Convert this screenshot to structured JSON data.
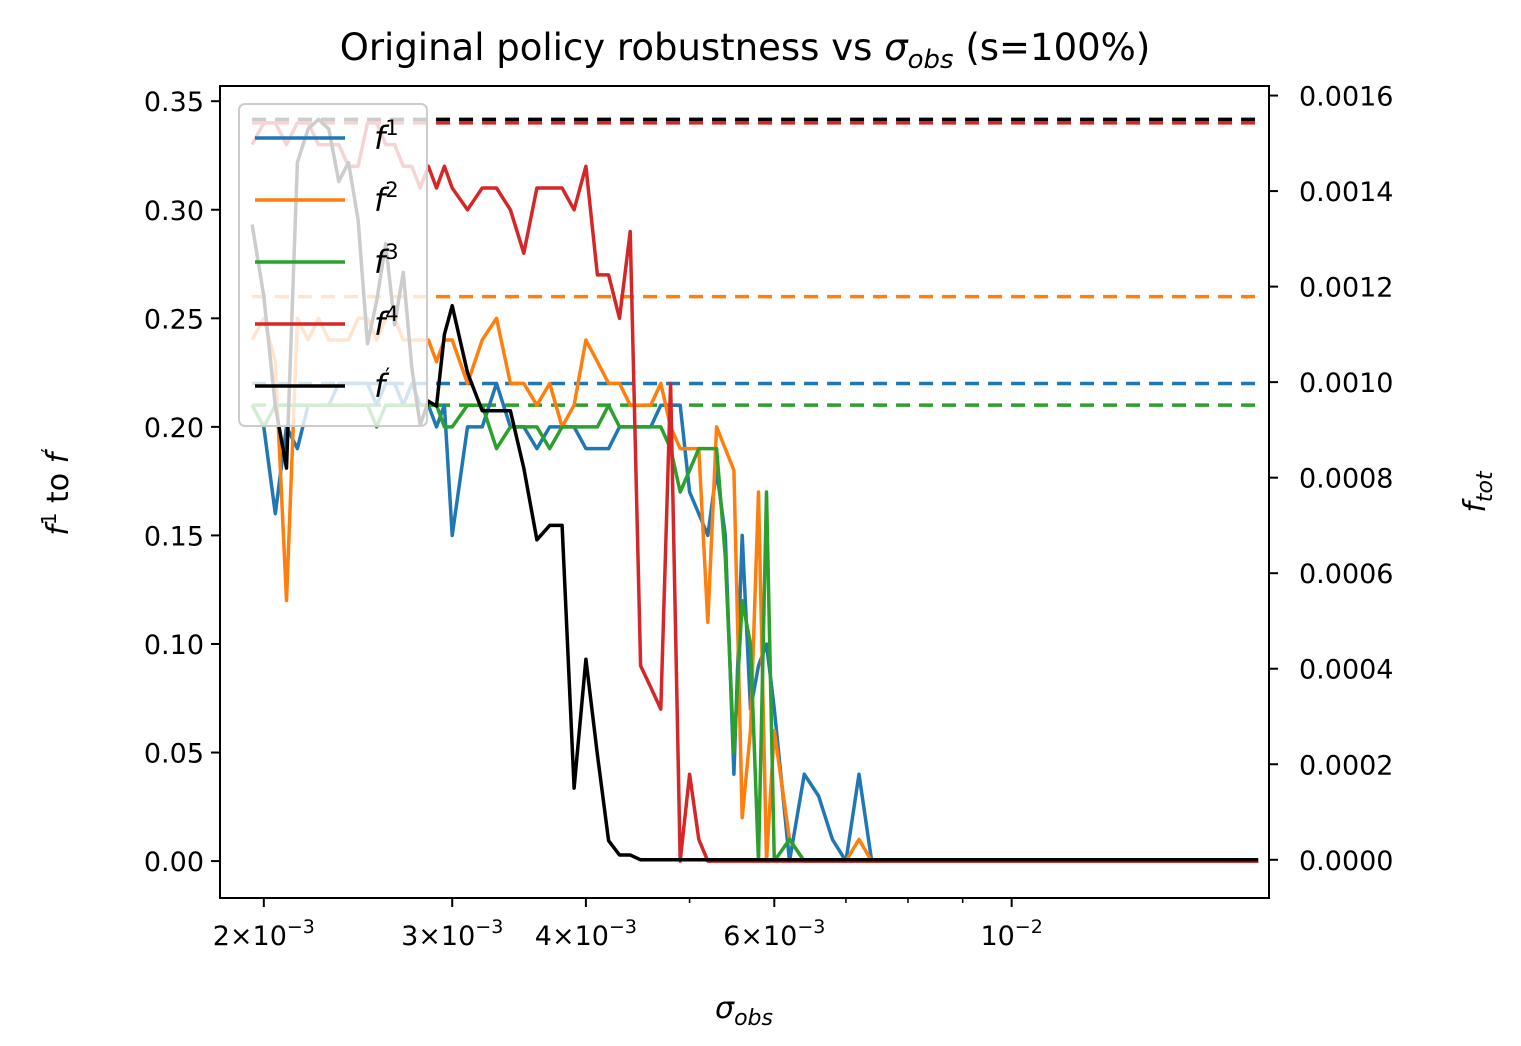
{
  "chart_data": {
    "type": "line",
    "title": "Original policy robustness vs σ_obs (s=100%)",
    "title_parts": {
      "pre": "Original policy robustness vs ",
      "sym": "σ",
      "sub": "obs",
      "post": " (s=100%)"
    },
    "xlabel": {
      "sym": "σ",
      "sub": "obs"
    },
    "ylabel": {
      "a": "f",
      "a_sup": "1",
      "mid": " to ",
      "b": "f",
      "b_sup": "′"
    },
    "y2label": {
      "sym": "f",
      "sub": "tot"
    },
    "x_scale": "log",
    "xlim": [
      0.00182,
      0.0174
    ],
    "ylim": [
      -0.017,
      0.357
    ],
    "y2lim": [
      -8e-05,
      0.00162
    ],
    "x_ticks": [
      {
        "value": 0.002,
        "mant": "2",
        "exp": "−3"
      },
      {
        "value": 0.003,
        "mant": "3",
        "exp": "−3"
      },
      {
        "value": 0.004,
        "mant": "4",
        "exp": "−3"
      },
      {
        "value": 0.006,
        "mant": "6",
        "exp": "−3"
      },
      {
        "value": 0.01,
        "mant": "",
        "exp": "−2"
      }
    ],
    "x_minor_ticks": [
      0.005,
      0.007,
      0.008,
      0.009
    ],
    "y_ticks": [
      "0.00",
      "0.05",
      "0.10",
      "0.15",
      "0.20",
      "0.25",
      "0.30",
      "0.35"
    ],
    "y2_ticks": [
      "0.0000",
      "0.0002",
      "0.0004",
      "0.0006",
      "0.0008",
      "0.0010",
      "0.0012",
      "0.0014",
      "0.0016"
    ],
    "grid": false,
    "legend_position": "upper-left",
    "x": [
      0.00195,
      0.002,
      0.00205,
      0.0021,
      0.00215,
      0.0022,
      0.00225,
      0.0023,
      0.00235,
      0.0024,
      0.00245,
      0.0025,
      0.00255,
      0.0026,
      0.00265,
      0.0027,
      0.00275,
      0.0028,
      0.00285,
      0.0029,
      0.00295,
      0.003,
      0.0031,
      0.0032,
      0.0033,
      0.0034,
      0.0035,
      0.0036,
      0.0037,
      0.0038,
      0.0039,
      0.004,
      0.0041,
      0.0042,
      0.0043,
      0.0044,
      0.0045,
      0.0046,
      0.0047,
      0.0048,
      0.0049,
      0.005,
      0.0051,
      0.0052,
      0.0053,
      0.0054,
      0.0055,
      0.0056,
      0.0057,
      0.0058,
      0.0059,
      0.006,
      0.0062,
      0.0064,
      0.0066,
      0.0068,
      0.007,
      0.0072,
      0.0074,
      0.0076,
      0.0078,
      0.008,
      0.0082,
      0.0084,
      0.0086,
      0.0088,
      0.009,
      0.0092,
      0.0094,
      0.0096,
      0.0098,
      0.01,
      0.0103,
      0.0106,
      0.011,
      0.0115,
      0.012,
      0.0126,
      0.0132,
      0.0139,
      0.0146,
      0.0154,
      0.0162,
      0.017
    ],
    "series": [
      {
        "name": "f1",
        "label": {
          "base": "f",
          "sup": "1"
        },
        "color": "#1f77b4",
        "reference": 0.22,
        "values": [
          0.21,
          0.2,
          0.16,
          0.2,
          0.19,
          0.21,
          0.21,
          0.21,
          0.22,
          0.22,
          0.22,
          0.22,
          0.21,
          0.22,
          0.22,
          0.21,
          0.22,
          0.21,
          0.21,
          0.2,
          0.21,
          0.15,
          0.2,
          0.2,
          0.22,
          0.2,
          0.2,
          0.19,
          0.2,
          0.2,
          0.2,
          0.19,
          0.19,
          0.19,
          0.2,
          0.2,
          0.2,
          0.2,
          0.21,
          0.21,
          0.21,
          0.17,
          0.16,
          0.15,
          0.18,
          0.15,
          0.04,
          0.15,
          0.07,
          0.09,
          0.1,
          0.07,
          0.0,
          0.04,
          0.03,
          0.01,
          0.0,
          0.04,
          0.0,
          0.0,
          0.0,
          0.0,
          0.0,
          0.0,
          0.0,
          0.0,
          0.0,
          0.0,
          0.0,
          0.0,
          0.0,
          0.0,
          0.0,
          0.0,
          0.0,
          0.0,
          0.0,
          0.0,
          0.0,
          0.0,
          0.0,
          0.0,
          0.0,
          0.0
        ]
      },
      {
        "name": "f2",
        "label": {
          "base": "f",
          "sup": "2"
        },
        "color": "#ff7f0e",
        "reference": 0.26,
        "values": [
          0.24,
          0.25,
          0.23,
          0.12,
          0.25,
          0.24,
          0.25,
          0.24,
          0.24,
          0.24,
          0.25,
          0.25,
          0.24,
          0.25,
          0.25,
          0.24,
          0.24,
          0.24,
          0.24,
          0.23,
          0.24,
          0.24,
          0.22,
          0.24,
          0.25,
          0.22,
          0.22,
          0.21,
          0.22,
          0.2,
          0.21,
          0.24,
          0.23,
          0.22,
          0.22,
          0.21,
          0.21,
          0.21,
          0.22,
          0.2,
          0.19,
          0.19,
          0.19,
          0.11,
          0.2,
          0.19,
          0.18,
          0.02,
          0.06,
          0.17,
          0.0,
          0.06,
          0.01,
          0.0,
          0.0,
          0.0,
          0.0,
          0.01,
          0.0,
          0.0,
          0.0,
          0.0,
          0.0,
          0.0,
          0.0,
          0.0,
          0.0,
          0.0,
          0.0,
          0.0,
          0.0,
          0.0,
          0.0,
          0.0,
          0.0,
          0.0,
          0.0,
          0.0,
          0.0,
          0.0,
          0.0,
          0.0,
          0.0,
          0.0
        ]
      },
      {
        "name": "f3",
        "label": {
          "base": "f",
          "sup": "3"
        },
        "color": "#2ca02c",
        "reference": 0.21,
        "values": [
          0.21,
          0.2,
          0.21,
          0.21,
          0.21,
          0.21,
          0.21,
          0.21,
          0.21,
          0.21,
          0.21,
          0.21,
          0.2,
          0.21,
          0.21,
          0.21,
          0.21,
          0.21,
          0.21,
          0.21,
          0.2,
          0.2,
          0.21,
          0.21,
          0.19,
          0.2,
          0.2,
          0.2,
          0.19,
          0.2,
          0.2,
          0.2,
          0.2,
          0.21,
          0.2,
          0.2,
          0.2,
          0.2,
          0.2,
          0.19,
          0.17,
          0.18,
          0.19,
          0.19,
          0.19,
          0.14,
          0.05,
          0.12,
          0.1,
          0.0,
          0.17,
          0.0,
          0.01,
          0.0,
          0.0,
          0.0,
          0.0,
          0.0,
          0.0,
          0.0,
          0.0,
          0.0,
          0.0,
          0.0,
          0.0,
          0.0,
          0.0,
          0.0,
          0.0,
          0.0,
          0.0,
          0.0,
          0.0,
          0.0,
          0.0,
          0.0,
          0.0,
          0.0,
          0.0,
          0.0,
          0.0,
          0.0,
          0.0,
          0.0
        ]
      },
      {
        "name": "f4",
        "label": {
          "base": "f",
          "sup": "4"
        },
        "color": "#d62728",
        "reference": 0.34,
        "values": [
          0.33,
          0.34,
          0.34,
          0.33,
          0.34,
          0.34,
          0.33,
          0.33,
          0.33,
          0.32,
          0.32,
          0.34,
          0.34,
          0.33,
          0.33,
          0.32,
          0.32,
          0.31,
          0.32,
          0.31,
          0.32,
          0.31,
          0.3,
          0.31,
          0.31,
          0.3,
          0.28,
          0.31,
          0.31,
          0.31,
          0.3,
          0.32,
          0.27,
          0.27,
          0.25,
          0.29,
          0.09,
          0.08,
          0.07,
          0.22,
          0.0,
          0.04,
          0.01,
          0.0,
          0.0,
          0.0,
          0.0,
          0.0,
          0.0,
          0.0,
          0.0,
          0.0,
          0.0,
          0.0,
          0.0,
          0.0,
          0.0,
          0.0,
          0.0,
          0.0,
          0.0,
          0.0,
          0.0,
          0.0,
          0.0,
          0.0,
          0.0,
          0.0,
          0.0,
          0.0,
          0.0,
          0.0,
          0.0,
          0.0,
          0.0,
          0.0,
          0.0,
          0.0,
          0.0,
          0.0,
          0.0,
          0.0,
          0.0,
          0.0
        ]
      },
      {
        "name": "f′",
        "label": {
          "base": "f",
          "sup": "′"
        },
        "color": "#000000",
        "axis": "right",
        "reference": 0.00155,
        "values": [
          0.00133,
          0.00118,
          0.00095,
          0.00082,
          0.00146,
          0.00153,
          0.00155,
          0.00153,
          0.00142,
          0.00146,
          0.00134,
          0.00108,
          0.00117,
          0.00129,
          0.00112,
          0.00123,
          0.00103,
          0.00091,
          0.00096,
          0.00095,
          0.0011,
          0.00116,
          0.00102,
          0.00094,
          0.00094,
          0.00094,
          0.00082,
          0.00067,
          0.0007,
          0.0007,
          0.00015,
          0.00042,
          0.00022,
          4e-05,
          1e-05,
          1e-05,
          0.0,
          0.0,
          0.0,
          0.0,
          0.0,
          0.0,
          0.0,
          0.0,
          0.0,
          0.0,
          0.0,
          0.0,
          0.0,
          0.0,
          0.0,
          0.0,
          0.0,
          0.0,
          0.0,
          0.0,
          0.0,
          0.0,
          0.0,
          0.0,
          0.0,
          0.0,
          0.0,
          0.0,
          0.0,
          0.0,
          0.0,
          0.0,
          0.0,
          0.0,
          0.0,
          0.0,
          0.0,
          0.0,
          0.0,
          0.0,
          0.0,
          0.0,
          0.0,
          0.0,
          0.0,
          0.0,
          0.0,
          0.0
        ]
      }
    ]
  }
}
